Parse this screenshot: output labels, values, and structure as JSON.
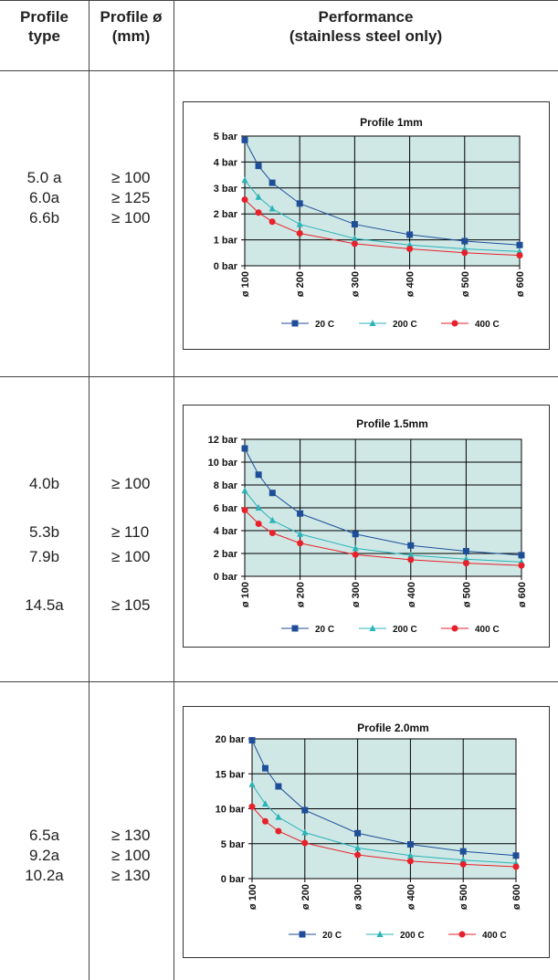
{
  "table": {
    "headers": {
      "profile_type": [
        "Profile",
        "type"
      ],
      "profile_dia": [
        "Profile ø",
        "(mm)"
      ],
      "performance": [
        "Performance",
        "(stainless steel only)"
      ]
    },
    "rows": [
      {
        "types": [
          "5.0 a",
          "6.0a",
          "6.6b"
        ],
        "diameters": [
          "≥ 100",
          "≥ 125",
          "≥ 100"
        ]
      },
      {
        "types": [
          "4.0b",
          "",
          "5.3b",
          "7.9b",
          "",
          "14.5a"
        ],
        "diameters": [
          "≥ 100",
          "",
          "≥ 110",
          "≥ 100",
          "",
          "≥ 105"
        ]
      },
      {
        "types": [
          "6.5a",
          "9.2a",
          "10.2a"
        ],
        "diameters": [
          "≥ 130",
          "≥ 100",
          "≥ 130"
        ]
      }
    ]
  },
  "colors": {
    "plot_bg": "#cfe8e6",
    "grid": "#000000",
    "s20": "#1f4e99",
    "s200": "#2ab3b8",
    "s400": "#e8202a"
  },
  "chart_data": [
    {
      "type": "line",
      "title": "Profile 1mm",
      "x": [
        100,
        125,
        150,
        200,
        300,
        400,
        500,
        600
      ],
      "xticks": [
        100,
        200,
        300,
        400,
        500,
        600
      ],
      "xtick_labels": [
        "ø 100",
        "ø 200",
        "ø 300",
        "ø 400",
        "ø 500",
        "ø 600"
      ],
      "ylim": [
        0,
        5
      ],
      "yticks": [
        0,
        1,
        2,
        3,
        4,
        5
      ],
      "ytick_labels": [
        "0 bar",
        "1 bar",
        "2 bar",
        "3 bar",
        "4 bar",
        "5 bar"
      ],
      "grid": true,
      "legend_position": "bottom",
      "series": [
        {
          "name": "20 C",
          "values": [
            4.85,
            3.85,
            3.2,
            2.4,
            1.6,
            1.2,
            0.95,
            0.8
          ],
          "marker": "square"
        },
        {
          "name": "200 C",
          "values": [
            3.3,
            2.65,
            2.2,
            1.6,
            1.05,
            0.8,
            0.65,
            0.55
          ],
          "marker": "triangle"
        },
        {
          "name": "400 C",
          "values": [
            2.55,
            2.05,
            1.7,
            1.25,
            0.85,
            0.65,
            0.5,
            0.4
          ],
          "marker": "circle"
        }
      ]
    },
    {
      "type": "line",
      "title": "Profile 1.5mm",
      "x": [
        100,
        125,
        150,
        200,
        300,
        400,
        500,
        600
      ],
      "xticks": [
        100,
        200,
        300,
        400,
        500,
        600
      ],
      "xtick_labels": [
        "ø 100",
        "ø 200",
        "ø 300",
        "ø 400",
        "ø 500",
        "ø 600"
      ],
      "ylim": [
        0,
        12
      ],
      "yticks": [
        0,
        2,
        4,
        6,
        8,
        10,
        12
      ],
      "ytick_labels": [
        "0 bar",
        "2 bar",
        "4 bar",
        "6 bar",
        "8 bar",
        "10 bar",
        "12 bar"
      ],
      "grid": true,
      "legend_position": "bottom",
      "series": [
        {
          "name": "20 C",
          "values": [
            11.2,
            8.9,
            7.3,
            5.5,
            3.7,
            2.7,
            2.2,
            1.85
          ],
          "marker": "square"
        },
        {
          "name": "200 C",
          "values": [
            7.5,
            6.0,
            4.9,
            3.7,
            2.45,
            1.85,
            1.5,
            1.25
          ],
          "marker": "triangle"
        },
        {
          "name": "400 C",
          "values": [
            5.8,
            4.6,
            3.8,
            2.9,
            1.9,
            1.45,
            1.15,
            0.95
          ],
          "marker": "circle"
        }
      ]
    },
    {
      "type": "line",
      "title": "Profile 2.0mm",
      "x": [
        100,
        125,
        150,
        200,
        300,
        400,
        500,
        600
      ],
      "xticks": [
        100,
        200,
        300,
        400,
        500,
        600
      ],
      "xtick_labels": [
        "ø 100",
        "ø 200",
        "ø 300",
        "ø 400",
        "ø 500",
        "ø 600"
      ],
      "ylim": [
        0,
        20
      ],
      "yticks": [
        0,
        5,
        10,
        15,
        20
      ],
      "ytick_labels": [
        "0 bar",
        "5 bar",
        "10 bar",
        "15 bar",
        "20 bar"
      ],
      "grid": true,
      "legend_position": "bottom",
      "series": [
        {
          "name": "20 C",
          "values": [
            19.8,
            15.8,
            13.2,
            9.8,
            6.5,
            4.9,
            3.9,
            3.3
          ],
          "marker": "square"
        },
        {
          "name": "200 C",
          "values": [
            13.5,
            10.7,
            8.8,
            6.6,
            4.4,
            3.3,
            2.65,
            2.2
          ],
          "marker": "triangle"
        },
        {
          "name": "400 C",
          "values": [
            10.3,
            8.2,
            6.8,
            5.1,
            3.4,
            2.5,
            2.05,
            1.7
          ],
          "marker": "circle"
        }
      ]
    }
  ]
}
